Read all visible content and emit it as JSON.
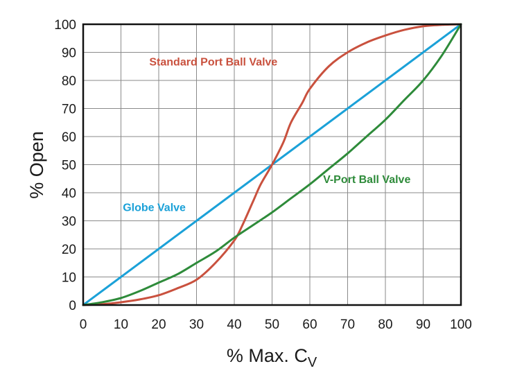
{
  "chart_data": {
    "type": "line",
    "title": "",
    "xlabel": "% Max. C",
    "xlabel_subscript": "V",
    "ylabel": "% Open",
    "xlim": [
      0,
      100
    ],
    "ylim": [
      0,
      100
    ],
    "x_ticks": [
      0,
      10,
      20,
      30,
      40,
      50,
      60,
      70,
      80,
      90,
      100
    ],
    "y_ticks": [
      0,
      10,
      20,
      30,
      40,
      50,
      60,
      70,
      80,
      90,
      100
    ],
    "grid": true,
    "legend": "inline labels",
    "series": [
      {
        "name": "Globe Valve",
        "color": "#1ba1d8",
        "x": [
          0,
          10,
          20,
          30,
          40,
          50,
          60,
          70,
          80,
          90,
          100
        ],
        "y": [
          0,
          10,
          20,
          30,
          40,
          50,
          60,
          70,
          80,
          90,
          100
        ]
      },
      {
        "name": "Standard Port Ball Valve",
        "color": "#c9513e",
        "x": [
          0,
          5,
          10,
          15,
          20,
          25,
          30,
          35,
          40,
          42,
          45,
          47,
          50,
          53,
          55,
          58,
          60,
          65,
          70,
          75,
          80,
          85,
          90,
          95,
          100
        ],
        "y": [
          0,
          0.3,
          1,
          2,
          3.5,
          6,
          9,
          15,
          23,
          28,
          37,
          43,
          50,
          58,
          65,
          72,
          77,
          85,
          90,
          93.5,
          96,
          98,
          99.3,
          99.8,
          100
        ]
      },
      {
        "name": "V-Port Ball Valve",
        "color": "#2e8b3a",
        "x": [
          0,
          5,
          10,
          15,
          20,
          25,
          30,
          35,
          40,
          45,
          50,
          55,
          60,
          65,
          70,
          75,
          80,
          85,
          90,
          95,
          100
        ],
        "y": [
          0,
          1,
          2.5,
          5,
          8,
          11,
          15,
          19,
          24,
          28.5,
          33,
          38,
          43,
          48.5,
          54,
          60,
          66,
          73,
          80,
          89,
          100
        ]
      }
    ]
  }
}
